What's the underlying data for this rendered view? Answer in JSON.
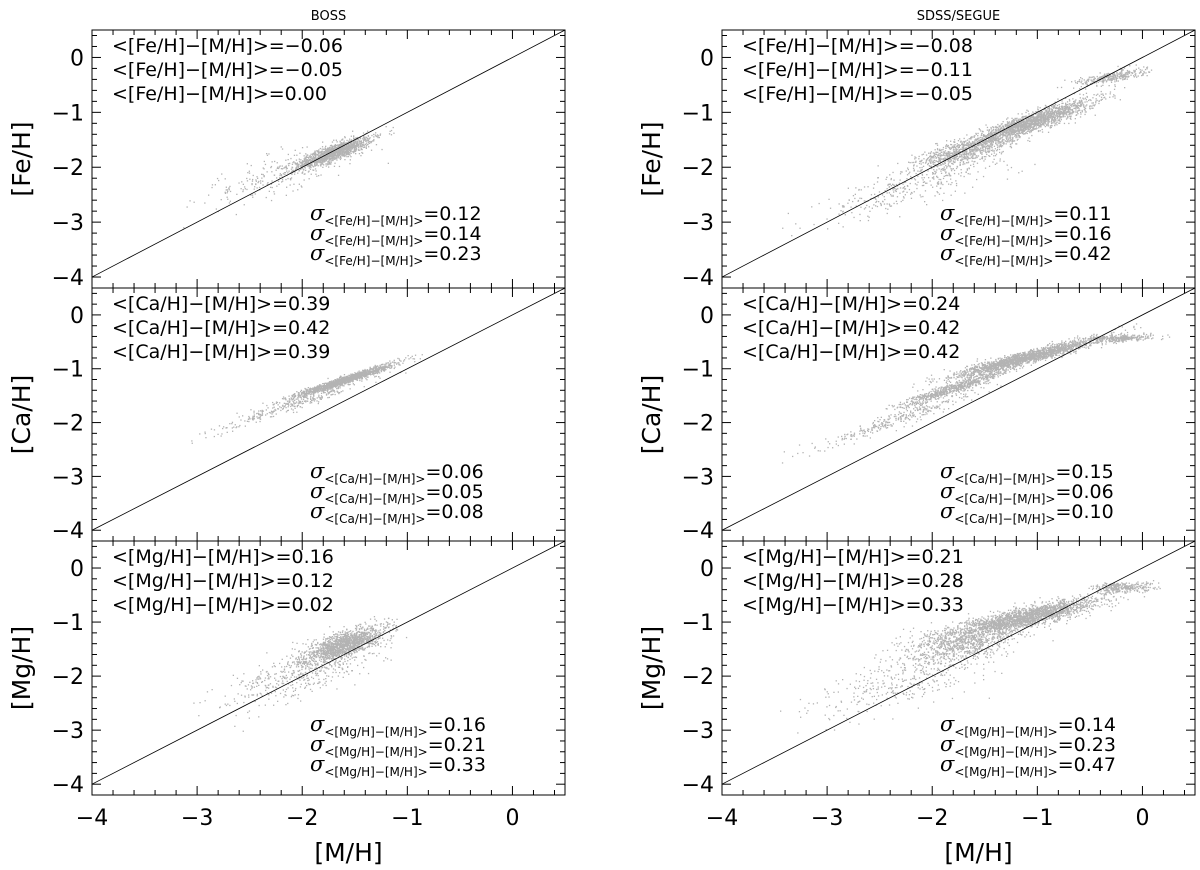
{
  "titles": {
    "left": "BOSS",
    "right": "SDSS/SEGUE"
  },
  "x_axis_label": "[M/H]",
  "x_ticks": [
    "−4",
    "−3",
    "−2",
    "−1",
    "0"
  ],
  "y_ticks": [
    "0",
    "−1",
    "−2",
    "−3",
    "−4"
  ],
  "sigma_symbol": "σ",
  "chart_data": [
    {
      "type": "scatter",
      "id": "boss-fe",
      "title": "BOSS",
      "xlabel": "",
      "ylabel": "[Fe/H]",
      "xlim": [
        -4,
        0.5
      ],
      "ylim": [
        -4.2,
        0.5
      ],
      "grid": false,
      "reference_line": "y = x",
      "mean_annotations": [
        "<[Fe/H]−[M/H]>=−0.06",
        "<[Fe/H]−[M/H]>=−0.05",
        "<[Fe/H]−[M/H]>=0.00"
      ],
      "sigma_labels": [
        {
          "sub": "<[Fe/H]−[M/H]>",
          "value": "=0.12"
        },
        {
          "sub": "<[Fe/H]−[M/H]>",
          "value": "=0.14"
        },
        {
          "sub": "<[Fe/H]−[M/H]>",
          "value": "=0.23"
        }
      ],
      "clouds": [
        {
          "cx": -1.7,
          "cy": -1.72,
          "major": 0.45,
          "minor": 0.12,
          "angle": 37,
          "n": 1300
        },
        {
          "cx": -2.2,
          "cy": -2.1,
          "major": 0.9,
          "minor": 0.3,
          "angle": 35,
          "n": 260
        }
      ]
    },
    {
      "type": "scatter",
      "id": "segue-fe",
      "title": "SDSS/SEGUE",
      "xlabel": "",
      "ylabel": "[Fe/H]",
      "xlim": [
        -4,
        0.5
      ],
      "ylim": [
        -4.2,
        0.5
      ],
      "grid": false,
      "reference_line": "y = x",
      "mean_annotations": [
        "<[Fe/H]−[M/H]>=−0.08",
        "<[Fe/H]−[M/H]>=−0.11",
        "<[Fe/H]−[M/H]>=−0.05"
      ],
      "sigma_labels": [
        {
          "sub": "<[Fe/H]−[M/H]>",
          "value": "=0.11"
        },
        {
          "sub": "<[Fe/H]−[M/H]>",
          "value": "=0.16"
        },
        {
          "sub": "<[Fe/H]−[M/H]>",
          "value": "=0.42"
        }
      ],
      "clouds": [
        {
          "cx": -1.1,
          "cy": -1.2,
          "major": 0.75,
          "minor": 0.14,
          "angle": 35,
          "n": 1900
        },
        {
          "cx": -1.7,
          "cy": -1.72,
          "major": 0.5,
          "minor": 0.2,
          "angle": 30,
          "n": 700
        },
        {
          "cx": -2.2,
          "cy": -2.3,
          "major": 1.0,
          "minor": 0.3,
          "angle": 35,
          "n": 350
        },
        {
          "cx": -0.3,
          "cy": -0.35,
          "major": 0.35,
          "minor": 0.1,
          "angle": 20,
          "n": 300
        }
      ]
    },
    {
      "type": "scatter",
      "id": "boss-ca",
      "title": "",
      "xlabel": "",
      "ylabel": "[Ca/H]",
      "xlim": [
        -4,
        0.5
      ],
      "ylim": [
        -4.2,
        0.5
      ],
      "grid": false,
      "reference_line": "y = x",
      "mean_annotations": [
        "<[Ca/H]−[M/H]>=0.39",
        "<[Ca/H]−[M/H]>=0.42",
        "<[Ca/H]−[M/H]>=0.39"
      ],
      "sigma_labels": [
        {
          "sub": "<[Ca/H]−[M/H]>",
          "value": "=0.06"
        },
        {
          "sub": "<[Ca/H]−[M/H]>",
          "value": "=0.05"
        },
        {
          "sub": "<[Ca/H]−[M/H]>",
          "value": "=0.08"
        }
      ],
      "clouds": [
        {
          "cx": -1.6,
          "cy": -1.2,
          "major": 0.55,
          "minor": 0.06,
          "angle": 33,
          "n": 1400
        },
        {
          "cx": -2.1,
          "cy": -1.65,
          "major": 0.9,
          "minor": 0.1,
          "angle": 35,
          "n": 320
        }
      ]
    },
    {
      "type": "scatter",
      "id": "segue-ca",
      "title": "",
      "xlabel": "",
      "ylabel": "[Ca/H]",
      "xlim": [
        -4,
        0.5
      ],
      "ylim": [
        -4.2,
        0.5
      ],
      "grid": false,
      "reference_line": "y = x",
      "mean_annotations": [
        "<[Ca/H]−[M/H]>=0.24",
        "<[Ca/H]−[M/H]>=0.42",
        "<[Ca/H]−[M/H]>=0.42"
      ],
      "sigma_labels": [
        {
          "sub": "<[Ca/H]−[M/H]>",
          "value": "=0.15"
        },
        {
          "sub": "<[Ca/H]−[M/H]>",
          "value": "=0.06"
        },
        {
          "sub": "<[Ca/H]−[M/H]>",
          "value": "=0.10"
        }
      ],
      "clouds": [
        {
          "cx": -1.1,
          "cy": -0.78,
          "major": 0.75,
          "minor": 0.1,
          "angle": 27,
          "n": 1900
        },
        {
          "cx": -1.8,
          "cy": -1.35,
          "major": 0.6,
          "minor": 0.08,
          "angle": 33,
          "n": 700
        },
        {
          "cx": -2.3,
          "cy": -1.9,
          "major": 0.9,
          "minor": 0.12,
          "angle": 35,
          "n": 300
        },
        {
          "cx": -0.2,
          "cy": -0.42,
          "major": 0.3,
          "minor": 0.06,
          "angle": 5,
          "n": 300
        }
      ]
    },
    {
      "type": "scatter",
      "id": "boss-mg",
      "title": "",
      "xlabel": "[M/H]",
      "ylabel": "[Mg/H]",
      "xlim": [
        -4,
        0.5
      ],
      "ylim": [
        -4.2,
        0.5
      ],
      "grid": false,
      "reference_line": "y = x",
      "mean_annotations": [
        "<[Mg/H]−[M/H]>=0.16",
        "<[Mg/H]−[M/H]>=0.12",
        "<[Mg/H]−[M/H]>=0.02"
      ],
      "sigma_labels": [
        {
          "sub": "<[Mg/H]−[M/H]>",
          "value": "=0.16"
        },
        {
          "sub": "<[Mg/H]−[M/H]>",
          "value": "=0.21"
        },
        {
          "sub": "<[Mg/H]−[M/H]>",
          "value": "=0.33"
        }
      ],
      "clouds": [
        {
          "cx": -1.6,
          "cy": -1.4,
          "major": 0.45,
          "minor": 0.18,
          "angle": 40,
          "n": 1400
        },
        {
          "cx": -2.0,
          "cy": -1.9,
          "major": 0.9,
          "minor": 0.35,
          "angle": 40,
          "n": 500
        }
      ]
    },
    {
      "type": "scatter",
      "id": "segue-mg",
      "title": "",
      "xlabel": "[M/H]",
      "ylabel": "[Mg/H]",
      "xlim": [
        -4,
        0.5
      ],
      "ylim": [
        -4.2,
        0.5
      ],
      "grid": false,
      "reference_line": "y = x",
      "mean_annotations": [
        "<[Mg/H]−[M/H]>=0.21",
        "<[Mg/H]−[M/H]>=0.28",
        "<[Mg/H]−[M/H]>=0.33"
      ],
      "sigma_labels": [
        {
          "sub": "<[Mg/H]−[M/H]>",
          "value": "=0.14"
        },
        {
          "sub": "<[Mg/H]−[M/H]>",
          "value": "=0.23"
        },
        {
          "sub": "<[Mg/H]−[M/H]>",
          "value": "=0.47"
        }
      ],
      "clouds": [
        {
          "cx": -1.1,
          "cy": -0.9,
          "major": 0.75,
          "minor": 0.17,
          "angle": 25,
          "n": 1900
        },
        {
          "cx": -1.7,
          "cy": -1.35,
          "major": 0.6,
          "minor": 0.3,
          "angle": 30,
          "n": 900
        },
        {
          "cx": -2.3,
          "cy": -2.1,
          "major": 1.0,
          "minor": 0.4,
          "angle": 35,
          "n": 350
        },
        {
          "cx": -0.2,
          "cy": -0.35,
          "major": 0.3,
          "minor": 0.1,
          "angle": 5,
          "n": 300
        }
      ]
    }
  ]
}
